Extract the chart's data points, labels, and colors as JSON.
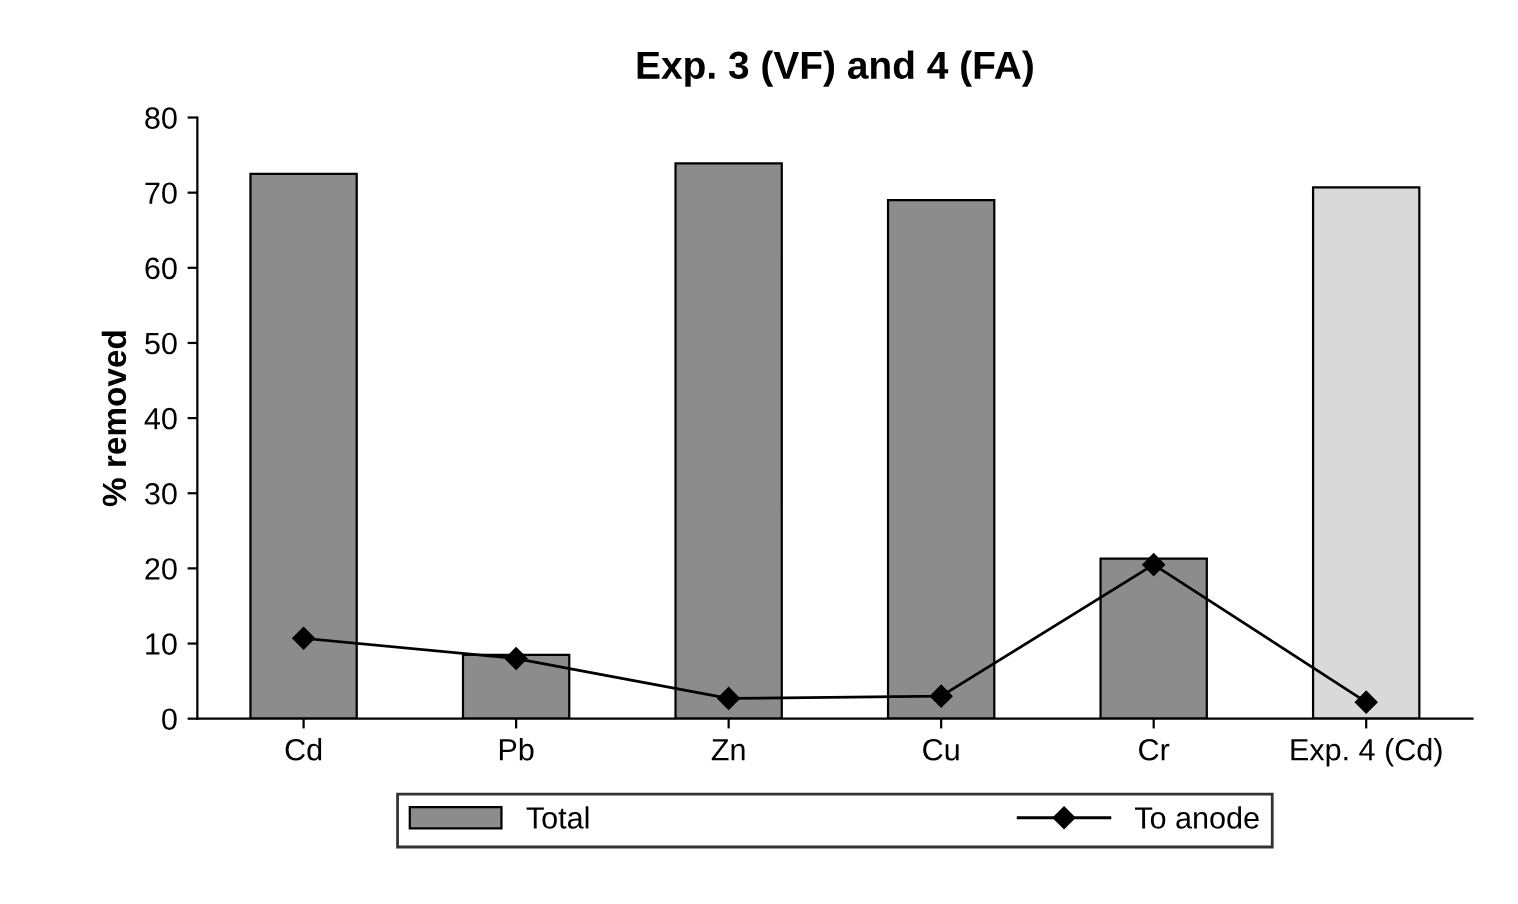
{
  "chart_data": {
    "type": "bar",
    "title": "Exp. 3 (VF) and 4 (FA)",
    "ylabel": "% removed",
    "categories": [
      "Cd",
      "Pb",
      "Zn",
      "Cu",
      "Cr",
      "Exp. 4 (Cd)"
    ],
    "series": [
      {
        "name": "Total",
        "color": "#8c8c8c",
        "colors": [
          "#8c8c8c",
          "#8c8c8c",
          "#8c8c8c",
          "#8c8c8c",
          "#8c8c8c",
          "#d9d9d9"
        ],
        "values": [
          72.5,
          8.5,
          73.9,
          69,
          21.3,
          70.7
        ]
      },
      {
        "name": "To anode",
        "type": "line",
        "color": "#000000",
        "marker": "diamond",
        "values": [
          10.7,
          8,
          2.7,
          3,
          20.5,
          2.2
        ]
      }
    ],
    "ylim": [
      0,
      80
    ],
    "yticks": [
      0,
      10,
      20,
      30,
      40,
      50,
      60,
      70,
      80
    ],
    "grid": false,
    "legend": "bottom"
  }
}
